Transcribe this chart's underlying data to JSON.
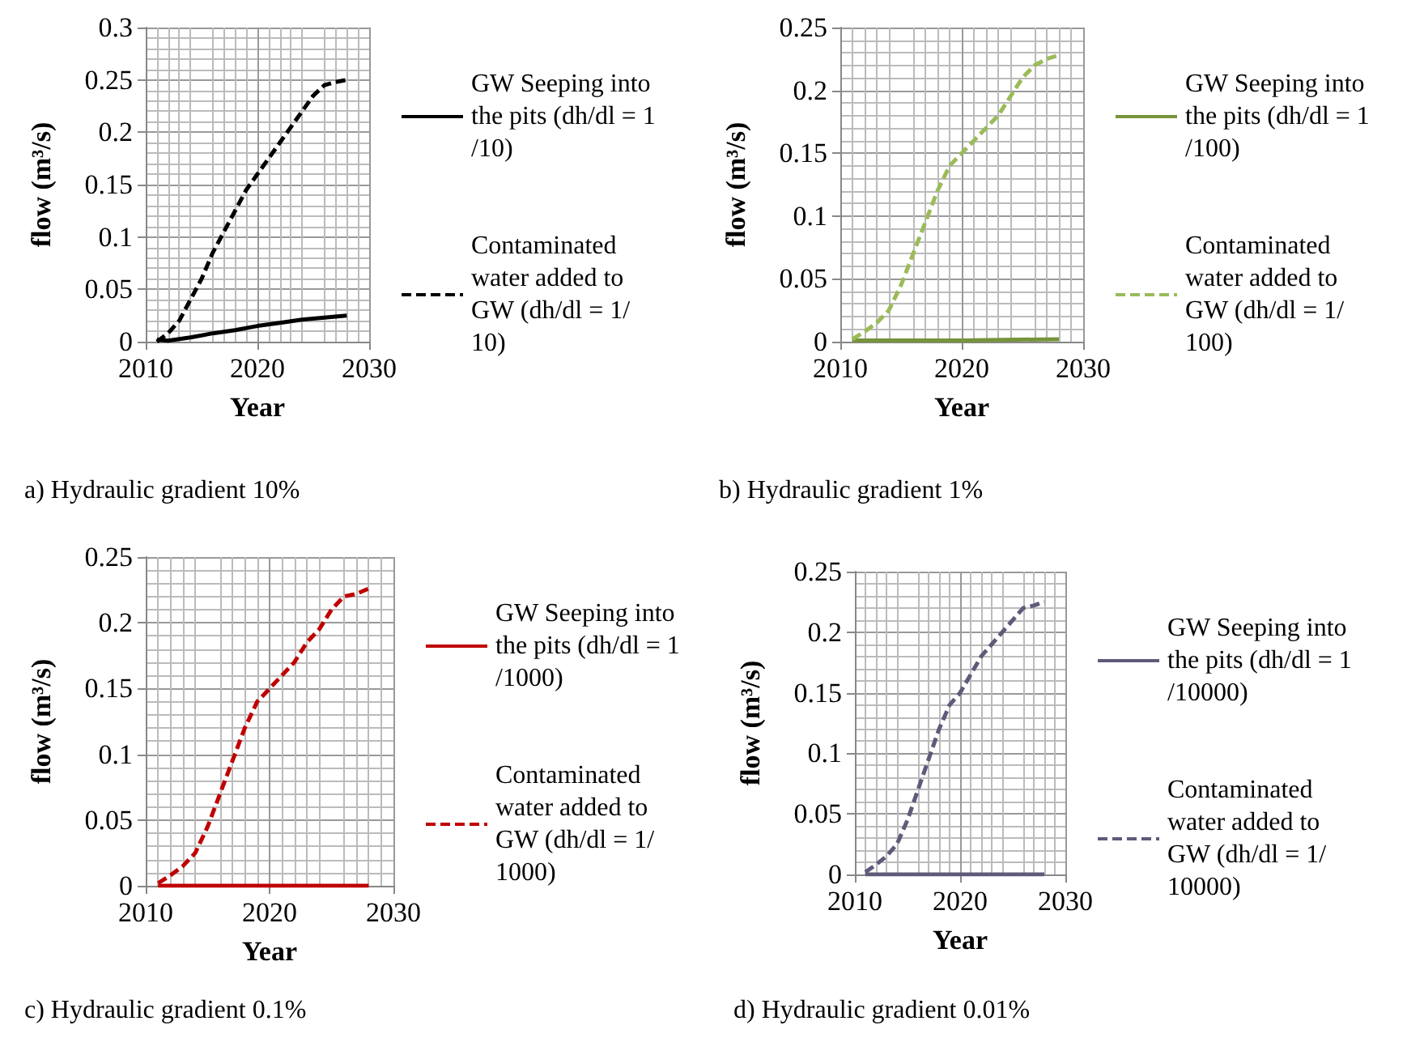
{
  "chart_data": [
    {
      "type": "line",
      "title": "a) Hydraulic gradient 10%",
      "xlabel": "Year",
      "ylabel": "flow (m³/s)",
      "xlim": [
        2010,
        2030
      ],
      "xticks": [
        2010,
        2020,
        2030
      ],
      "ylim": [
        0,
        0.3
      ],
      "yticks": [
        0,
        0.05,
        0.1,
        0.15,
        0.2,
        0.25,
        0.3
      ],
      "grid": true,
      "legend": "right",
      "series": [
        {
          "name": "GW Seeping into the pits (dh/dl = 1/10)",
          "color": "#000000",
          "line_style": "solid",
          "x": [
            2011,
            2012,
            2014,
            2016,
            2018,
            2020,
            2022,
            2024,
            2026,
            2028
          ],
          "values": [
            0.002,
            0.001,
            0.004,
            0.008,
            0.011,
            0.015,
            0.018,
            0.021,
            0.023,
            0.025
          ]
        },
        {
          "name": "Contaminated water added to GW (dh/dl = 1/10)",
          "color": "#000000",
          "line_style": "dashed",
          "x": [
            2011,
            2012,
            2013,
            2014,
            2015,
            2016,
            2017,
            2018,
            2019,
            2020,
            2021,
            2022,
            2023,
            2024,
            2025,
            2026,
            2027,
            2028
          ],
          "values": [
            0,
            0.008,
            0.02,
            0.04,
            0.06,
            0.085,
            0.105,
            0.125,
            0.145,
            0.16,
            0.175,
            0.19,
            0.205,
            0.22,
            0.235,
            0.245,
            0.248,
            0.25
          ]
        }
      ]
    },
    {
      "type": "line",
      "title": "b) Hydraulic gradient 1%",
      "xlabel": "Year",
      "ylabel": "flow (m³/s)",
      "xlim": [
        2010,
        2030
      ],
      "xticks": [
        2010,
        2020,
        2030
      ],
      "ylim": [
        0,
        0.25
      ],
      "yticks": [
        0,
        0.05,
        0.1,
        0.15,
        0.2,
        0.25
      ],
      "grid": true,
      "legend": "right",
      "series": [
        {
          "name": "GW Seeping into the pits (dh/dl = 1/100)",
          "color": "#77933c",
          "line_style": "solid",
          "x": [
            2011,
            2020,
            2028
          ],
          "values": [
            0.001,
            0.001,
            0.002
          ]
        },
        {
          "name": "Contaminated water added to GW (dh/dl = 1/100)",
          "color": "#9bbb59",
          "line_style": "dashed",
          "x": [
            2011,
            2012,
            2013,
            2014,
            2015,
            2016,
            2017,
            2018,
            2019,
            2020,
            2021,
            2022,
            2023,
            2024,
            2025,
            2026,
            2027,
            2028
          ],
          "values": [
            0.002,
            0.008,
            0.015,
            0.025,
            0.045,
            0.07,
            0.095,
            0.12,
            0.14,
            0.15,
            0.16,
            0.17,
            0.18,
            0.195,
            0.21,
            0.22,
            0.225,
            0.228
          ]
        }
      ]
    },
    {
      "type": "line",
      "title": "c) Hydraulic gradient 0.1%",
      "xlabel": "Year",
      "ylabel": "flow (m³/s)",
      "xlim": [
        2010,
        2030
      ],
      "xticks": [
        2010,
        2020,
        2030
      ],
      "ylim": [
        0,
        0.25
      ],
      "yticks": [
        0,
        0.05,
        0.1,
        0.15,
        0.2,
        0.25
      ],
      "grid": true,
      "legend": "right",
      "series": [
        {
          "name": "GW Seeping into the pits (dh/dl = 1/1000)",
          "color": "#c00000",
          "line_style": "solid",
          "x": [
            2011,
            2028
          ],
          "values": [
            0,
            0
          ]
        },
        {
          "name": "Contaminated water added to GW (dh/dl = 1/1000)",
          "color": "#c00000",
          "line_style": "dashed",
          "x": [
            2011,
            2012,
            2013,
            2014,
            2015,
            2016,
            2017,
            2018,
            2019,
            2020,
            2021,
            2022,
            2023,
            2024,
            2025,
            2026,
            2027,
            2028
          ],
          "values": [
            0.002,
            0.008,
            0.015,
            0.025,
            0.045,
            0.07,
            0.095,
            0.12,
            0.14,
            0.15,
            0.16,
            0.17,
            0.185,
            0.195,
            0.21,
            0.22,
            0.222,
            0.226
          ]
        }
      ]
    },
    {
      "type": "line",
      "title": "d) Hydraulic gradient 0.01%",
      "xlabel": "Year",
      "ylabel": "flow (m³/s)",
      "xlim": [
        2010,
        2030
      ],
      "xticks": [
        2010,
        2020,
        2030
      ],
      "ylim": [
        0,
        0.25
      ],
      "yticks": [
        0,
        0.05,
        0.1,
        0.15,
        0.2,
        0.25
      ],
      "grid": true,
      "legend": "right",
      "series": [
        {
          "name": "GW Seeping into the pits (dh/dl = 1/10000)",
          "color": "#5f5a7a",
          "line_style": "solid",
          "x": [
            2011,
            2028
          ],
          "values": [
            0,
            0
          ]
        },
        {
          "name": "Contaminated water added to GW (dh/dl = 1/10000)",
          "color": "#5f5a7a",
          "line_style": "dashed",
          "x": [
            2011,
            2012,
            2013,
            2014,
            2015,
            2016,
            2017,
            2018,
            2019,
            2020,
            2021,
            2022,
            2023,
            2024,
            2025,
            2026,
            2027,
            2028
          ],
          "values": [
            0.002,
            0.008,
            0.015,
            0.025,
            0.045,
            0.07,
            0.095,
            0.12,
            0.14,
            0.15,
            0.165,
            0.18,
            0.19,
            0.2,
            0.21,
            0.22,
            0.222,
            0.225
          ]
        }
      ]
    }
  ]
}
